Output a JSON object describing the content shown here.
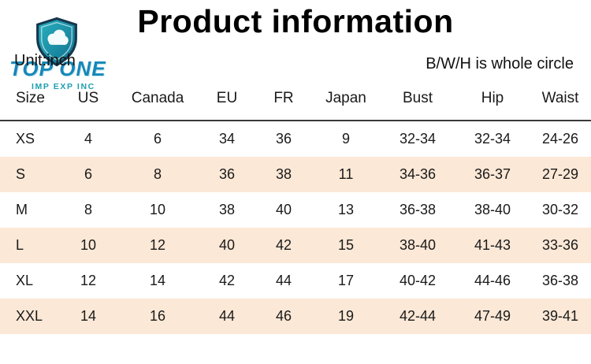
{
  "title": "Product information",
  "logo": {
    "line1": "TOP ONE",
    "line2": "IMP EXP INC"
  },
  "unit_label": "Unit:inch",
  "note": "B/W/H is whole circle",
  "colors": {
    "row_alt": "#fbe8d6",
    "header_rule": "#3a3a3a",
    "logo_teal": "#1d9fae",
    "logo_blue": "#1887b8",
    "logo_navy": "#16384f"
  },
  "chart_data": {
    "type": "table",
    "title": "Product information",
    "unit": "Unit:inch",
    "note": "B/W/H is whole circle",
    "columns": [
      "Size",
      "US",
      "Canada",
      "EU",
      "FR",
      "Japan",
      "Bust",
      "Hip",
      "Waist"
    ],
    "rows": [
      [
        "XS",
        "4",
        "6",
        "34",
        "36",
        "9",
        "32-34",
        "32-34",
        "24-26"
      ],
      [
        "S",
        "6",
        "8",
        "36",
        "38",
        "11",
        "34-36",
        "36-37",
        "27-29"
      ],
      [
        "M",
        "8",
        "10",
        "38",
        "40",
        "13",
        "36-38",
        "38-40",
        "30-32"
      ],
      [
        "L",
        "10",
        "12",
        "40",
        "42",
        "15",
        "38-40",
        "41-43",
        "33-36"
      ],
      [
        "XL",
        "12",
        "14",
        "42",
        "44",
        "17",
        "40-42",
        "44-46",
        "36-38"
      ],
      [
        "XXL",
        "14",
        "16",
        "44",
        "46",
        "19",
        "42-44",
        "47-49",
        "39-41"
      ]
    ]
  }
}
